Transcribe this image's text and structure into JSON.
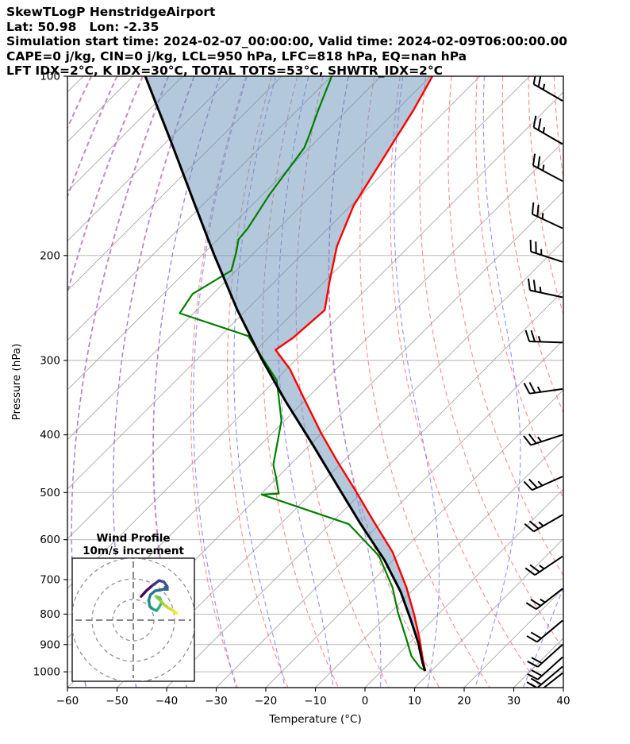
{
  "header": {
    "lines": [
      "SkewTLogP HenstridgeAirport",
      "Lat: 50.98   Lon: -2.35",
      "Simulation start time: 2024-02-07_00:00:00, Valid time: 2024-02-09T06:00:00.00",
      "CAPE=0 j/kg, CIN=0 j/kg, LCL=950 hPa, LFC=818 hPa, EQ=nan hPa",
      "LFT IDX=2°C, K IDX=30°C, TOTAL TOTS=53°C, SHWTR_IDX=2°C"
    ]
  },
  "chart_data": {
    "type": "line",
    "variant": "skew-t-log-p",
    "xlabel": "Temperature (°C)",
    "ylabel": "Pressure (hPa)",
    "xlim": [
      -60,
      40
    ],
    "plim": [
      100,
      1063
    ],
    "x_ticks": [
      -60,
      -50,
      -40,
      -30,
      -20,
      -10,
      0,
      10,
      20,
      30,
      40
    ],
    "x_tick_labels": [
      "−60",
      "−50",
      "−40",
      "−30",
      "−20",
      "−10",
      "0",
      "10",
      "20",
      "30",
      "40"
    ],
    "p_ticks": [
      100,
      200,
      300,
      400,
      500,
      600,
      700,
      800,
      900,
      1000
    ],
    "p_tick_labels": [
      "100",
      "200",
      "300",
      "400",
      "500",
      "600",
      "700",
      "800",
      "900",
      "1000"
    ],
    "skew_degrees": 45,
    "isotherms": {
      "min": -180,
      "max": 40,
      "step": 10
    },
    "dry_adiabats": {
      "min": -100,
      "max": 120,
      "step": 10
    },
    "moist_adiabats": {
      "min": -100,
      "max": 40,
      "step": 10
    },
    "colors": {
      "temperature": "#ff0000",
      "dewpoint": "#008000",
      "parcel": "#000000",
      "isotherm": "#a8a8a8",
      "pressure_grid": "#b0b0b0",
      "dry_adiabat": "#ff6e6e",
      "moist_adiabat": "#7474ff",
      "cin_fill": "rgba(103,146,184,0.5)",
      "barb": "#000000"
    },
    "series": [
      {
        "name": "temperature",
        "points": [
          [
            -109.6,
            100
          ],
          [
            -106.6,
            114
          ],
          [
            -102.6,
            140
          ],
          [
            -99.4,
            165
          ],
          [
            -94.6,
            193
          ],
          [
            -89.0,
            221
          ],
          [
            -84.2,
            247
          ],
          [
            -85.0,
            275
          ],
          [
            -86.1,
            288
          ],
          [
            -79.4,
            310
          ],
          [
            -69.8,
            351
          ],
          [
            -60.2,
            397
          ],
          [
            -51.4,
            442
          ],
          [
            -41.0,
            500
          ],
          [
            -32.2,
            556
          ],
          [
            -21.8,
            629
          ],
          [
            -11.8,
            722
          ],
          [
            -4.6,
            804
          ],
          [
            1.3,
            882
          ],
          [
            5.9,
            952
          ],
          [
            8.8,
            997
          ]
        ]
      },
      {
        "name": "dewpoint",
        "points": [
          [
            -129.9,
            100
          ],
          [
            -125.8,
            114
          ],
          [
            -122.2,
            127
          ],
          [
            -121.0,
            132
          ],
          [
            -118.6,
            158
          ],
          [
            -116.2,
            180
          ],
          [
            -115.8,
            188
          ],
          [
            -113.8,
            197
          ],
          [
            -111.0,
            212
          ],
          [
            -114.1,
            232
          ],
          [
            -112.8,
            250
          ],
          [
            -94.4,
            273
          ],
          [
            -79.7,
            324
          ],
          [
            -70.6,
            379
          ],
          [
            -63.4,
            449
          ],
          [
            -60.5,
            470
          ],
          [
            -56.5,
            502
          ],
          [
            -59.7,
            504
          ],
          [
            -36.2,
            565
          ],
          [
            -23.7,
            639
          ],
          [
            -14.6,
            722
          ],
          [
            -8.5,
            795
          ],
          [
            -2.2,
            871
          ],
          [
            3.0,
            941
          ],
          [
            7.0,
            983
          ],
          [
            8.6,
            995
          ]
        ]
      },
      {
        "name": "parcel",
        "points": [
          [
            -167.5,
            100
          ],
          [
            -149.0,
            129
          ],
          [
            -132.2,
            163
          ],
          [
            -117.8,
            199
          ],
          [
            -101.8,
            247
          ],
          [
            -87.4,
            297
          ],
          [
            -73.8,
            351
          ],
          [
            -59.4,
            416
          ],
          [
            -46.6,
            485
          ],
          [
            -33.8,
            565
          ],
          [
            -21.8,
            649
          ],
          [
            -12.2,
            733
          ],
          [
            -4.5,
            817
          ],
          [
            1.8,
            895
          ],
          [
            6.7,
            967
          ],
          [
            8.8,
            997
          ]
        ]
      }
    ],
    "cin_region": {
      "between": [
        "parcel",
        "temperature"
      ]
    },
    "wind_barbs": {
      "full_barb_ms": 10,
      "levels": [
        {
          "p": 110,
          "from_deg": 300,
          "speed_ms": 25
        },
        {
          "p": 130,
          "from_deg": 300,
          "speed_ms": 25
        },
        {
          "p": 150,
          "from_deg": 298,
          "speed_ms": 25
        },
        {
          "p": 180,
          "from_deg": 295,
          "speed_ms": 25
        },
        {
          "p": 205,
          "from_deg": 288,
          "speed_ms": 25
        },
        {
          "p": 235,
          "from_deg": 282,
          "speed_ms": 25
        },
        {
          "p": 280,
          "from_deg": 272,
          "speed_ms": 25
        },
        {
          "p": 335,
          "from_deg": 262,
          "speed_ms": 25
        },
        {
          "p": 400,
          "from_deg": 252,
          "speed_ms": 25
        },
        {
          "p": 470,
          "from_deg": 246,
          "speed_ms": 25
        },
        {
          "p": 545,
          "from_deg": 240,
          "speed_ms": 25
        },
        {
          "p": 640,
          "from_deg": 236,
          "speed_ms": 25
        },
        {
          "p": 725,
          "from_deg": 232,
          "speed_ms": 25
        },
        {
          "p": 820,
          "from_deg": 230,
          "speed_ms": 20
        },
        {
          "p": 900,
          "from_deg": 228,
          "speed_ms": 20
        },
        {
          "p": 945,
          "from_deg": 228,
          "speed_ms": 20
        },
        {
          "p": 980,
          "from_deg": 230,
          "speed_ms": 20
        },
        {
          "p": 1005,
          "from_deg": 232,
          "speed_ms": 20
        }
      ]
    },
    "hodograph": {
      "title": [
        "Wind Profile",
        "10m/s increment"
      ],
      "ring_interval_ms": 10,
      "rings": [
        10,
        20,
        30
      ],
      "trace_uv": [
        [
          3.8,
          11.5
        ],
        [
          6.3,
          14.2
        ],
        [
          9.4,
          16.9
        ],
        [
          12.5,
          19.2
        ],
        [
          14.8,
          18.5
        ],
        [
          16.3,
          16.5
        ],
        [
          16.0,
          15.4
        ],
        [
          13.3,
          14.6
        ],
        [
          10.6,
          14.2
        ],
        [
          8.3,
          12.3
        ],
        [
          7.5,
          9.6
        ],
        [
          7.9,
          6.9
        ],
        [
          9.4,
          5.4
        ],
        [
          11.3,
          4.6
        ],
        [
          12.5,
          6.2
        ],
        [
          13.7,
          8.5
        ],
        [
          12.9,
          10.8
        ],
        [
          11.0,
          11.5
        ],
        [
          13.3,
          9.2
        ],
        [
          15.2,
          7.3
        ],
        [
          17.1,
          5.8
        ],
        [
          18.7,
          5.0
        ],
        [
          20.2,
          3.8
        ],
        [
          21.0,
          3.5
        ]
      ],
      "trace_colors": [
        "#440154",
        "#47096a",
        "#483078",
        "#45437e",
        "#3d528b",
        "#365a8c",
        "#2f648e",
        "#2a6e8e",
        "#25788e",
        "#21828c",
        "#1e8c8a",
        "#1c9687",
        "#20a085",
        "#2aaa80",
        "#3ab478",
        "#4ebd6c",
        "#66c35d",
        "#81ca4c",
        "#9cd13a",
        "#b8d62f",
        "#d2dc2a",
        "#eade27",
        "#fde725"
      ],
      "marker_index": 6
    }
  }
}
